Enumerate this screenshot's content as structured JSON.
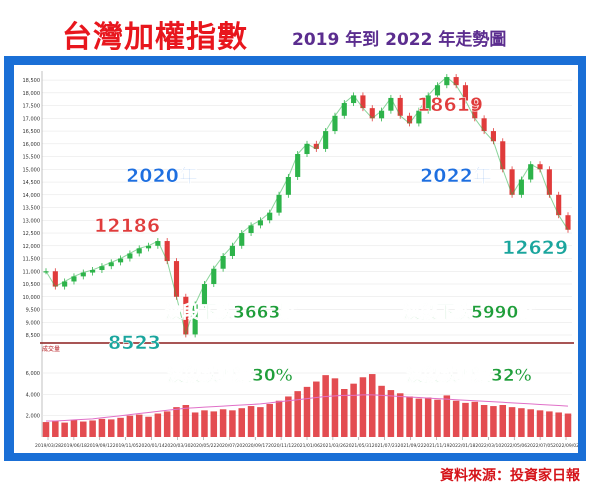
{
  "title": "台灣加權指數",
  "subtitle": "2019 年到 2022 年走勢圖",
  "source": "資料來源：投資家日報",
  "colors": {
    "title": "#e8161d",
    "subtitle": "#5b2d8f",
    "frame": "#1a6fd6",
    "up_candle": "#2db34a",
    "down_candle": "#e03b3b",
    "volume": "#e0393e",
    "volume_ma": "#e070c8",
    "divider": "#8b1d1d",
    "year_label": "#1e6fe0",
    "peak_label": "#e03c3c",
    "trough_label": "#1aa59d",
    "move_label": "#1f9e3a"
  },
  "chart_data": {
    "type": "line",
    "ylim": [
      8500,
      18700
    ],
    "y_ticks": [
      "18,500",
      "18,000",
      "17,500",
      "17,000",
      "16,500",
      "16,000",
      "15,500",
      "15,000",
      "14,500",
      "14,000",
      "13,500",
      "13,000",
      "12,500",
      "12,000",
      "11,500",
      "11,000",
      "10,500",
      "10,000",
      "9,500",
      "9,000",
      "8,500"
    ],
    "y_tick_values": [
      18500,
      18000,
      17500,
      17000,
      16500,
      16000,
      15500,
      15000,
      14500,
      14000,
      13500,
      13000,
      12500,
      12000,
      11500,
      11000,
      10500,
      10000,
      9500,
      9000,
      8500
    ],
    "x_ticks": [
      "2019/03/28",
      "2019/06/18",
      "2019/09/12",
      "2019/11/05",
      "2020/01/14",
      "2020/03/30",
      "2020/05/22",
      "2020/07/20",
      "2020/09/17",
      "2020/11/12",
      "2021/01/06",
      "2021/03/26",
      "2021/05/31",
      "2021/07/23",
      "2021/09/22",
      "2021/11/19",
      "2022/01/18",
      "2022/03/10",
      "2022/05/06",
      "2022/07/05",
      "2022/09/02"
    ],
    "series": [
      {
        "values": [
          11000,
          10400,
          10600,
          10800,
          10950,
          11050,
          11200,
          11350,
          11500,
          11700,
          11900,
          12000,
          12186,
          11400,
          10000,
          8523,
          9700,
          10500,
          11100,
          11600,
          12000,
          12500,
          12800,
          13000,
          13300,
          14000,
          14700,
          15600,
          16000,
          15800,
          16500,
          17100,
          17600,
          17900,
          17400,
          17000,
          17300,
          17800,
          17100,
          16800,
          17300,
          17900,
          18300,
          18619,
          18300,
          17700,
          17000,
          16500,
          16100,
          15000,
          14000,
          14600,
          15200,
          15000,
          14000,
          13200,
          12629
        ]
      }
    ],
    "volume_series": {
      "name": "成交量",
      "y_ticks": [
        "6,000",
        "4,000",
        "2,000"
      ],
      "y_tick_values": [
        6000,
        4000,
        2000
      ],
      "ylim": [
        0,
        7500
      ],
      "values": [
        1400,
        1500,
        1350,
        1600,
        1450,
        1550,
        1700,
        1650,
        1800,
        2000,
        2100,
        1900,
        2200,
        2400,
        2800,
        3000,
        2300,
        2500,
        2400,
        2600,
        2500,
        2700,
        2900,
        2800,
        3100,
        3400,
        3800,
        4300,
        4700,
        5200,
        5800,
        5500,
        4500,
        5000,
        5600,
        5900,
        4800,
        4400,
        4100,
        3800,
        3600,
        3700,
        3500,
        3900,
        3400,
        3200,
        3300,
        3000,
        2900,
        3000,
        2800,
        2700,
        2600,
        2500,
        2400,
        2300,
        2200
      ],
      "ma_values": [
        1500,
        1500,
        1550,
        1600,
        1650,
        1700,
        1800,
        1900,
        2000,
        2100,
        2200,
        2300,
        2400,
        2500,
        2600,
        2700,
        2750,
        2800,
        2850,
        2900,
        2950,
        3000,
        3050,
        3100,
        3200,
        3300,
        3400,
        3500,
        3600,
        3700,
        3800,
        3850,
        3900,
        3900,
        3950,
        3950,
        3900,
        3850,
        3800,
        3750,
        3700,
        3650,
        3600,
        3550,
        3500,
        3450,
        3400,
        3350,
        3300,
        3250,
        3200,
        3150,
        3100,
        3050,
        3000,
        2950,
        2900
      ]
    },
    "annotations": {
      "year_2020": "2020年",
      "year_2022": "2022年",
      "peak_2020": "12186",
      "peak_2022": "18619",
      "trough_2020": "8523",
      "trough_2022": "12629",
      "drop_2020_points": "波段下跌3663點",
      "drop_2022_points": "波段下跌5990點",
      "drop_2020_pct": "波段跌幅達30%",
      "drop_2022_pct": "波段跌幅達32%"
    }
  }
}
